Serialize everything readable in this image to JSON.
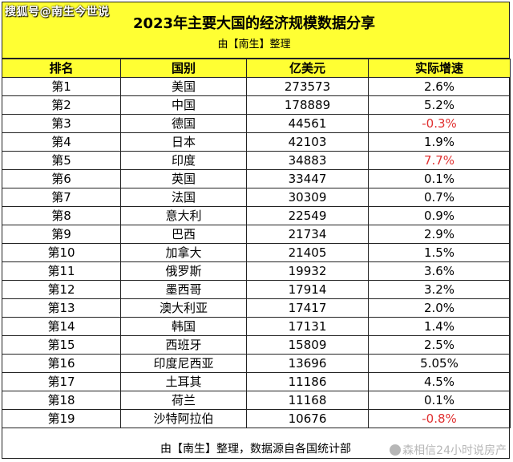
{
  "watermark_top": "搜狐号@南生今世说",
  "title": "2023年主要大国的经济规模数据分享",
  "subtitle": "由【南生】整理",
  "headers": [
    "排名",
    "国别",
    "亿美元",
    "实际增速"
  ],
  "rows": [
    {
      "rank": "第1",
      "country": "美国",
      "gdp": "273573",
      "growth": "2.6%"
    },
    {
      "rank": "第2",
      "country": "中国",
      "gdp": "178889",
      "growth": "5.2%"
    },
    {
      "rank": "第3",
      "country": "德国",
      "gdp": "44561",
      "growth": "-0.3%"
    },
    {
      "rank": "第4",
      "country": "日本",
      "gdp": "42103",
      "growth": "1.9%"
    },
    {
      "rank": "第5",
      "country": "印度",
      "gdp": "34883",
      "growth": "7.7%"
    },
    {
      "rank": "第6",
      "country": "英国",
      "gdp": "33447",
      "growth": "0.1%"
    },
    {
      "rank": "第7",
      "country": "法国",
      "gdp": "30309",
      "growth": "0.7%"
    },
    {
      "rank": "第8",
      "country": "意大利",
      "gdp": "22549",
      "growth": "0.9%"
    },
    {
      "rank": "第9",
      "country": "巴西",
      "gdp": "21734",
      "growth": "2.9%"
    },
    {
      "rank": "第10",
      "country": "加拿大",
      "gdp": "21405",
      "growth": "1.5%"
    },
    {
      "rank": "第11",
      "country": "俄罗斯",
      "gdp": "19932",
      "growth": "3.6%"
    },
    {
      "rank": "第12",
      "country": "墨西哥",
      "gdp": "17914",
      "growth": "3.2%"
    },
    {
      "rank": "第13",
      "country": "澳大利亚",
      "gdp": "17417",
      "growth": "2.0%"
    },
    {
      "rank": "第14",
      "country": "韩国",
      "gdp": "17131",
      "growth": "1.4%"
    },
    {
      "rank": "第15",
      "country": "西班牙",
      "gdp": "15809",
      "growth": "2.5%"
    },
    {
      "rank": "第16",
      "country": "印度尼西亚",
      "gdp": "13696",
      "growth": "5.05%"
    },
    {
      "rank": "第17",
      "country": "土耳其",
      "gdp": "11186",
      "growth": "4.5%"
    },
    {
      "rank": "第18",
      "country": "荷兰",
      "gdp": "11168",
      "growth": "0.1%"
    },
    {
      "rank": "第19",
      "country": "沙特阿拉伯",
      "gdp": "10676",
      "growth": "-0.8%"
    }
  ],
  "red_growth_rows": [
    2,
    4,
    18
  ],
  "footer": "由【南生】整理，数据源自各国统计部",
  "watermark_bottom": "森相信24小时说房产",
  "colors": {
    "header_yellow": "#ffff33",
    "highlight_red": "#e03030",
    "border": "#222222"
  }
}
